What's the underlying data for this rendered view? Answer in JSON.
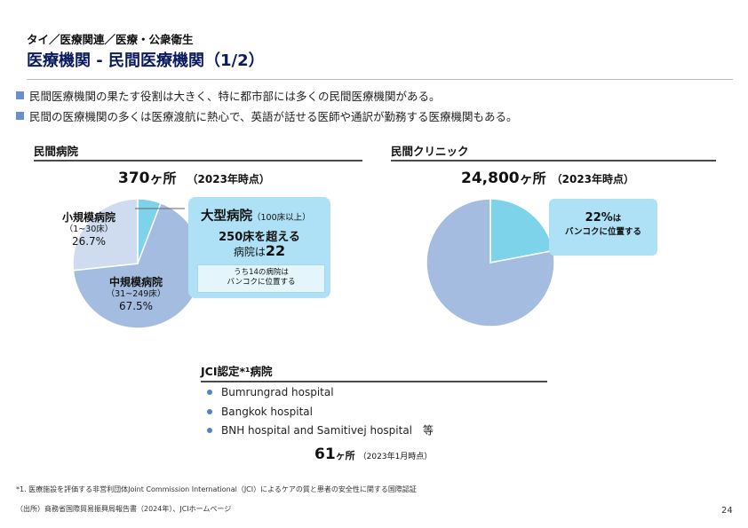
{
  "header": {
    "breadcrumb": "タイ／医療関連／医療・公衆衛生",
    "title": "医療機関 - 民間医療機関（1/2）"
  },
  "bullets": [
    "民間医療機関の果たす役割は大きく、特に都市部には多くの民間医療機関がある。",
    "民間の医療機関の多くは医療渡航に熱心で、英語が話せる医師や通訳が勤務する医療機関もある。"
  ],
  "hospitals": {
    "heading": "民間病院",
    "count": "370",
    "count_suffix": "ヶ所",
    "as_of": "（2023年時点）",
    "small": {
      "name": "小規模病院",
      "range": "（1~30床）",
      "pct": "26.7%"
    },
    "medium": {
      "name": "中規模病院",
      "range": "（31~249床）",
      "pct": "67.5%"
    },
    "large": {
      "name": "大型病院",
      "range": "（100床以上）",
      "line1": "250床を超える",
      "line2_prefix": "病院は",
      "line2_value": "22",
      "note_line1": "うち14の病院は",
      "note_line2": "バンコクに位置する"
    }
  },
  "clinics": {
    "heading": "民間クリニック",
    "count": "24,800",
    "count_suffix": "ヶ所",
    "as_of": "（2023年時点）",
    "callout_pct": "22%",
    "callout_pct_suffix": "は",
    "callout_text": "バンコクに位置する"
  },
  "jci": {
    "heading": "JCI認定*¹病院",
    "items": [
      "Bumrungrad hospital",
      "Bangkok hospital",
      "BNH hospital and Samitivej hospital　等"
    ],
    "count": "61",
    "count_suffix": "ヶ所",
    "as_of": "（2023年1月時点）"
  },
  "footnotes": {
    "note1": "*1. 医療施設を評価する非営利団体Joint Commission International（JCI）によるケアの質と患者の安全性に関する国際認証",
    "source": "（出所）商務省国際貿易振興局報告書（2024年）、JCIホームページ"
  },
  "page_number": "24",
  "chart_data": [
    {
      "type": "pie",
      "labels": [
        "大型病院",
        "中規模病院",
        "小規模病院"
      ],
      "values": [
        5.8,
        67.5,
        26.7
      ],
      "colors": [
        "#7dd3ea",
        "#a3bce0",
        "#cfdcef"
      ]
    },
    {
      "type": "pie",
      "labels": [
        "バンコク",
        "その他"
      ],
      "values": [
        22,
        78
      ],
      "colors": [
        "#7dd3ea",
        "#a3bce0"
      ]
    }
  ]
}
